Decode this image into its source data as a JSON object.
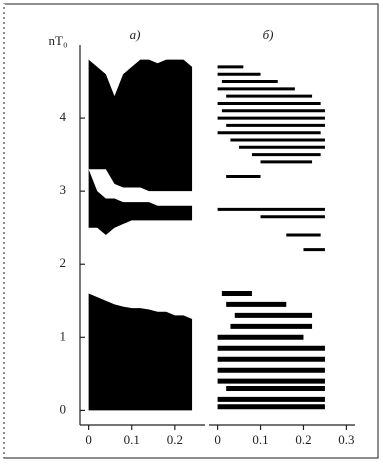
{
  "chart_data": [
    {
      "type": "band",
      "title": "а)",
      "ylabel": "nT₀",
      "x": [
        0,
        0.02,
        0.04,
        0.06,
        0.08,
        0.1,
        0.12,
        0.14,
        0.16,
        0.18,
        0.2,
        0.22,
        0.24
      ],
      "series": [
        {
          "color": "#000000",
          "low": [
            0,
            0,
            0,
            0,
            0,
            0,
            0,
            0,
            0,
            0,
            0,
            0,
            0
          ],
          "high": [
            1.6,
            1.55,
            1.5,
            1.45,
            1.42,
            1.4,
            1.4,
            1.38,
            1.35,
            1.35,
            1.3,
            1.3,
            1.25
          ]
        },
        {
          "color": "#000000",
          "low": [
            2.5,
            2.5,
            2.4,
            2.5,
            2.55,
            2.6,
            2.6,
            2.6,
            2.6,
            2.6,
            2.6,
            2.6,
            2.6
          ],
          "high": [
            3.3,
            3.0,
            2.9,
            2.9,
            2.85,
            2.85,
            2.85,
            2.85,
            2.8,
            2.8,
            2.8,
            2.8,
            2.8
          ]
        },
        {
          "color": "#000000",
          "low": [
            3.3,
            3.3,
            3.3,
            3.1,
            3.05,
            3.05,
            3.05,
            3.0,
            3.0,
            3.0,
            3.0,
            3.0,
            3.0
          ],
          "high": [
            4.8,
            4.7,
            4.6,
            4.3,
            4.6,
            4.7,
            4.8,
            4.8,
            4.75,
            4.8,
            4.8,
            4.8,
            4.7
          ]
        }
      ],
      "xlim": [
        -0.02,
        0.27
      ],
      "xticks": [
        0,
        0.1,
        0.2
      ],
      "ylim": [
        -0.2,
        5.0
      ],
      "yticks": [
        0,
        1,
        2,
        3,
        4
      ]
    },
    {
      "type": "segments",
      "title": "б)",
      "color": "#000000",
      "y": [
        4.7,
        4.6,
        4.5,
        4.4,
        4.3,
        4.2,
        4.1,
        4.0,
        3.9,
        3.8,
        3.7,
        3.6,
        3.5,
        3.4,
        3.2,
        2.75,
        2.65,
        2.4,
        2.2,
        1.6,
        1.45,
        1.3,
        1.15,
        1.0,
        0.85,
        0.7,
        0.55,
        0.4,
        0.3,
        0.15,
        0.05
      ],
      "x0": [
        0,
        0,
        0.01,
        0,
        0.02,
        0,
        0.01,
        0,
        0.02,
        0,
        0.03,
        0.05,
        0.08,
        0.1,
        0.02,
        0,
        0.1,
        0.16,
        0.2,
        0.01,
        0.02,
        0.04,
        0.03,
        0,
        0,
        0,
        0,
        0,
        0.02,
        0,
        0
      ],
      "x1": [
        0.06,
        0.1,
        0.14,
        0.18,
        0.22,
        0.24,
        0.25,
        0.25,
        0.25,
        0.24,
        0.25,
        0.25,
        0.24,
        0.22,
        0.1,
        0.25,
        0.25,
        0.24,
        0.25,
        0.08,
        0.16,
        0.22,
        0.22,
        0.2,
        0.25,
        0.25,
        0.25,
        0.25,
        0.25,
        0.25,
        0.25
      ],
      "xlim": [
        -0.02,
        0.32
      ],
      "xticks": [
        0,
        0.1,
        0.2,
        0.3
      ],
      "ylim": [
        -0.2,
        5.0
      ]
    }
  ]
}
